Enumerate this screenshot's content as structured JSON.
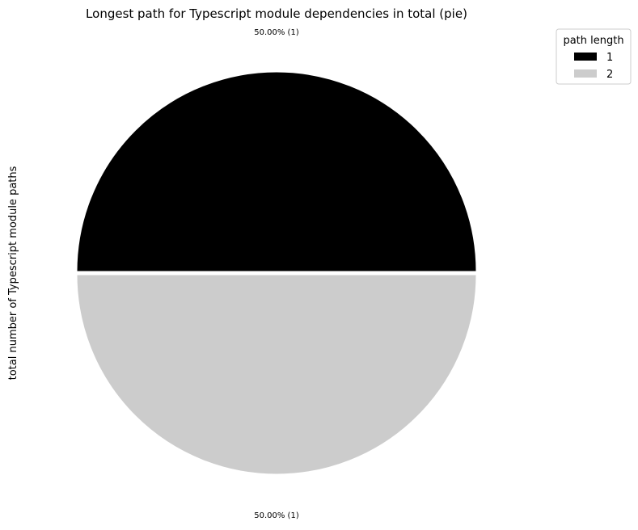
{
  "chart_data": {
    "type": "pie",
    "title": "Longest path for Typescript module dependencies in total (pie)",
    "ylabel": "total number of Typescript module paths",
    "legend": {
      "title": "path length",
      "placement": "upper-right, outside the pie"
    },
    "slices": [
      {
        "label": "1",
        "value": 1,
        "percent_label": "50.00% (1)",
        "color": "#000000"
      },
      {
        "label": "2",
        "value": 1,
        "percent_label": "50.00% (1)",
        "color": "#cccccc"
      }
    ]
  }
}
